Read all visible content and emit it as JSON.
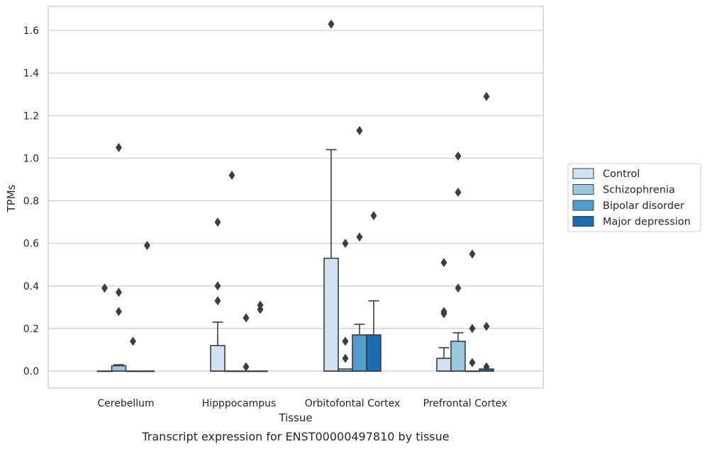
{
  "chart_data": {
    "type": "boxplot",
    "xlabel": "Tissue",
    "ylabel": "TPMs",
    "caption": "Transcript expression for ENST00000497810 by tissue",
    "ylim": [
      -0.08,
      1.72
    ],
    "yticks": [
      "0.0",
      "0.2",
      "0.4",
      "0.6",
      "0.8",
      "1.0",
      "1.2",
      "1.4",
      "1.6"
    ],
    "grid": "horizontal",
    "legend_placement": "right",
    "categories": [
      "Cerebellum",
      "Hipppocampus",
      "Orbitofontal Cortex",
      "Prefrontal Cortex"
    ],
    "series": [
      {
        "name": "Control",
        "color": "#d1e2f2",
        "boxes": [
          {
            "q1": 0,
            "median": 0,
            "q3": 0,
            "whisker_low": 0,
            "whisker_high": 0,
            "outliers": [
              0.39
            ]
          },
          {
            "q1": 0,
            "median": 0,
            "q3": 0.12,
            "whisker_low": 0,
            "whisker_high": 0.23,
            "outliers": [
              0.33,
              0.4,
              0.7
            ]
          },
          {
            "q1": 0,
            "median": 0,
            "q3": 0.53,
            "whisker_low": 0,
            "whisker_high": 1.04,
            "outliers": [
              1.63
            ]
          },
          {
            "q1": 0,
            "median": 0,
            "q3": 0.06,
            "whisker_low": 0,
            "whisker_high": 0.11,
            "outliers": [
              0.27,
              0.28,
              0.51
            ]
          }
        ]
      },
      {
        "name": "Schizophrenia",
        "color": "#9ac8e0",
        "boxes": [
          {
            "q1": 0,
            "median": 0,
            "q3": 0.025,
            "whisker_low": 0,
            "whisker_high": 0.03,
            "outliers": [
              0.28,
              0.37,
              1.05
            ]
          },
          {
            "q1": 0,
            "median": 0,
            "q3": 0,
            "whisker_low": 0,
            "whisker_high": 0,
            "outliers": [
              0.92
            ]
          },
          {
            "q1": 0,
            "median": 0,
            "q3": 0.01,
            "whisker_low": 0,
            "whisker_high": 0.01,
            "outliers": [
              0.06,
              0.14,
              0.6
            ]
          },
          {
            "q1": 0,
            "median": 0,
            "q3": 0.14,
            "whisker_low": 0,
            "whisker_high": 0.18,
            "outliers": [
              0.39,
              0.84,
              1.01
            ]
          }
        ]
      },
      {
        "name": "Bipolar disorder",
        "color": "#529dcc",
        "boxes": [
          {
            "q1": 0,
            "median": 0,
            "q3": 0,
            "whisker_low": 0,
            "whisker_high": 0,
            "outliers": [
              0.14
            ]
          },
          {
            "q1": 0,
            "median": 0,
            "q3": 0,
            "whisker_low": 0,
            "whisker_high": 0,
            "outliers": [
              0.02,
              0.25
            ]
          },
          {
            "q1": 0,
            "median": 0,
            "q3": 0.17,
            "whisker_low": 0,
            "whisker_high": 0.22,
            "outliers": [
              0.63,
              1.13
            ]
          },
          {
            "q1": 0,
            "median": 0,
            "q3": 0,
            "whisker_low": 0,
            "whisker_high": 0,
            "outliers": [
              0.04,
              0.2,
              0.55
            ]
          }
        ]
      },
      {
        "name": "Major depression",
        "color": "#1c6aaf",
        "boxes": [
          {
            "q1": 0,
            "median": 0,
            "q3": 0,
            "whisker_low": 0,
            "whisker_high": 0,
            "outliers": [
              0.59
            ]
          },
          {
            "q1": 0,
            "median": 0,
            "q3": 0,
            "whisker_low": 0,
            "whisker_high": 0,
            "outliers": [
              0.29,
              0.31
            ]
          },
          {
            "q1": 0,
            "median": 0,
            "q3": 0.17,
            "whisker_low": 0,
            "whisker_high": 0.33,
            "outliers": [
              0.73
            ]
          },
          {
            "q1": 0,
            "median": 0,
            "q3": 0.01,
            "whisker_low": 0,
            "whisker_high": 0.01,
            "outliers": [
              0.02,
              0.21,
              1.29
            ]
          }
        ]
      }
    ]
  },
  "colors": {
    "grid": "#cccccc",
    "frame": "#cccccc",
    "edge": "#3d3d3d",
    "text": "#262626"
  }
}
